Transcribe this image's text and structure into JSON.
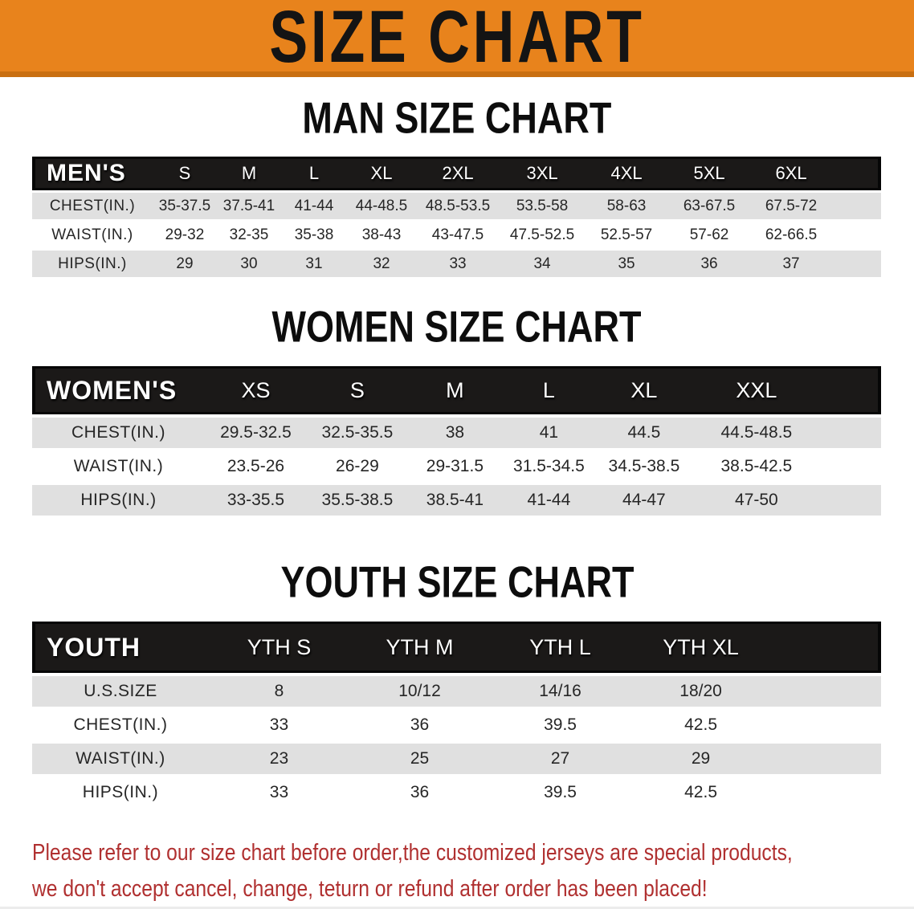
{
  "banner": {
    "title": "SIZE CHART"
  },
  "colors": {
    "banner_orange": "#E8831C",
    "banner_bottom_edge": "#C96F12",
    "table_header_black": "#1B1918",
    "row_gray": "#E0E0E0",
    "disclaimer_red": "#B03030"
  },
  "sections": [
    {
      "id": "men",
      "title": "MAN SIZE CHART",
      "table": {
        "group_label": "MEN'S",
        "columns": [
          "S",
          "M",
          "L",
          "XL",
          "2XL",
          "3XL",
          "4XL",
          "5XL",
          "6XL"
        ],
        "rows": [
          {
            "label": "CHEST(IN.)",
            "values": [
              "35-37.5",
              "37.5-41",
              "41-44",
              "44-48.5",
              "48.5-53.5",
              "53.5-58",
              "58-63",
              "63-67.5",
              "67.5-72"
            ]
          },
          {
            "label": "WAIST(IN.)",
            "values": [
              "29-32",
              "32-35",
              "35-38",
              "38-43",
              "43-47.5",
              "47.5-52.5",
              "52.5-57",
              "57-62",
              "62-66.5"
            ]
          },
          {
            "label": "HIPS(IN.)",
            "values": [
              "29",
              "30",
              "31",
              "32",
              "33",
              "34",
              "35",
              "36",
              "37"
            ]
          }
        ]
      }
    },
    {
      "id": "women",
      "title": "WOMEN SIZE CHART",
      "table": {
        "group_label": "WOMEN'S",
        "columns": [
          "XS",
          "S",
          "M",
          "L",
          "XL",
          "XXL"
        ],
        "rows": [
          {
            "label": "CHEST(IN.)",
            "values": [
              "29.5-32.5",
              "32.5-35.5",
              "38",
              "41",
              "44.5",
              "44.5-48.5"
            ]
          },
          {
            "label": "WAIST(IN.)",
            "values": [
              "23.5-26",
              "26-29",
              "29-31.5",
              "31.5-34.5",
              "34.5-38.5",
              "38.5-42.5"
            ]
          },
          {
            "label": "HIPS(IN.)",
            "values": [
              "33-35.5",
              "35.5-38.5",
              "38.5-41",
              "41-44",
              "44-47",
              "47-50"
            ]
          }
        ]
      }
    },
    {
      "id": "youth",
      "title": "YOUTH SIZE CHART",
      "table": {
        "group_label": "YOUTH",
        "columns": [
          "YTH S",
          "YTH M",
          "YTH L",
          "YTH XL"
        ],
        "rows": [
          {
            "label": "U.S.SIZE",
            "values": [
              "8",
              "10/12",
              "14/16",
              "18/20"
            ]
          },
          {
            "label": "CHEST(IN.)",
            "values": [
              "33",
              "36",
              "39.5",
              "42.5"
            ]
          },
          {
            "label": "WAIST(IN.)",
            "values": [
              "23",
              "25",
              "27",
              "29"
            ]
          },
          {
            "label": "HIPS(IN.)",
            "values": [
              "33",
              "36",
              "39.5",
              "42.5"
            ]
          }
        ]
      }
    }
  ],
  "footer": {
    "line1": "Please refer to our size chart before order,the customized jerseys are special products,",
    "line2": "we don't accept cancel, change, teturn or refund after order has been placed!"
  }
}
